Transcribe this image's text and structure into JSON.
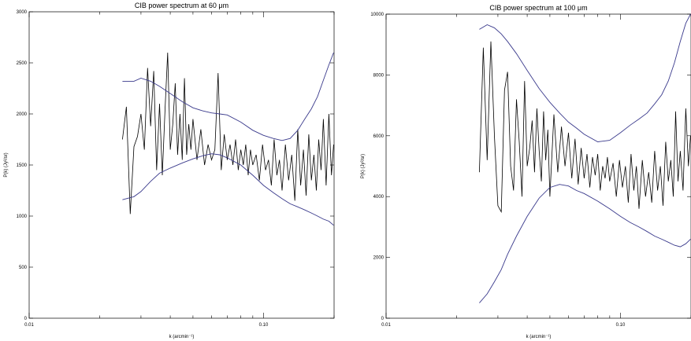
{
  "chart_data": [
    {
      "type": "line",
      "title": "CIB power spectrum at 60 μm",
      "xlabel": "k (arcmin⁻¹)",
      "ylabel": "P(k) (Jy²/sr)",
      "xscale": "log",
      "xlim": [
        0.01,
        0.2
      ],
      "ylim": [
        0,
        3000
      ],
      "xticks": [
        "0.01",
        "0.10"
      ],
      "xtick_values": [
        0.01,
        0.1
      ],
      "yticks": [
        0,
        500,
        1000,
        1500,
        2000,
        2500,
        3000
      ],
      "grid": false,
      "series": [
        {
          "color": "#000000",
          "x": [
            0.025,
            0.026,
            0.027,
            0.028,
            0.029,
            0.03,
            0.031,
            0.032,
            0.033,
            0.034,
            0.035,
            0.036,
            0.037,
            0.038,
            0.039,
            0.04,
            0.041,
            0.042,
            0.043,
            0.044,
            0.045,
            0.046,
            0.047,
            0.048,
            0.049,
            0.05,
            0.052,
            0.054,
            0.056,
            0.058,
            0.06,
            0.062,
            0.064,
            0.066,
            0.068,
            0.07,
            0.072,
            0.074,
            0.076,
            0.078,
            0.08,
            0.082,
            0.084,
            0.086,
            0.088,
            0.09,
            0.093,
            0.096,
            0.099,
            0.102,
            0.105,
            0.108,
            0.111,
            0.114,
            0.117,
            0.12,
            0.124,
            0.128,
            0.132,
            0.136,
            0.14,
            0.144,
            0.148,
            0.152,
            0.156,
            0.16,
            0.164,
            0.168,
            0.172,
            0.176,
            0.18,
            0.185,
            0.19,
            0.195,
            0.199
          ],
          "y": [
            1750,
            2070,
            1020,
            1680,
            1780,
            2000,
            1650,
            2450,
            1880,
            2420,
            1450,
            2100,
            1400,
            2050,
            2600,
            1650,
            1900,
            2300,
            1600,
            2000,
            1550,
            2350,
            1600,
            1900,
            1650,
            1950,
            1550,
            1850,
            1500,
            1700,
            1550,
            1650,
            2400,
            1450,
            1800,
            1550,
            1700,
            1500,
            1750,
            1450,
            1650,
            1500,
            1700,
            1400,
            1650,
            1500,
            1600,
            1350,
            1700,
            1450,
            1550,
            1300,
            1750,
            1400,
            1550,
            1250,
            1700,
            1350,
            1600,
            1150,
            1850,
            1300,
            1650,
            1200,
            1800,
            1350,
            1600,
            1250,
            1750,
            1450,
            1950,
            1300,
            2000,
            1400,
            1700
          ]
        },
        {
          "color": "#3a3a8c",
          "x": [
            0.025,
            0.028,
            0.03,
            0.033,
            0.036,
            0.04,
            0.045,
            0.05,
            0.055,
            0.06,
            0.065,
            0.07,
            0.08,
            0.09,
            0.1,
            0.11,
            0.12,
            0.13,
            0.14,
            0.15,
            0.16,
            0.17,
            0.18,
            0.19,
            0.199
          ],
          "y": [
            2320,
            2320,
            2350,
            2320,
            2270,
            2200,
            2120,
            2060,
            2030,
            2010,
            2000,
            1990,
            1920,
            1840,
            1790,
            1760,
            1740,
            1760,
            1840,
            1950,
            2050,
            2170,
            2330,
            2480,
            2600
          ]
        },
        {
          "color": "#3a3a8c",
          "x": [
            0.025,
            0.028,
            0.03,
            0.033,
            0.036,
            0.04,
            0.045,
            0.05,
            0.055,
            0.06,
            0.065,
            0.07,
            0.08,
            0.09,
            0.1,
            0.11,
            0.12,
            0.13,
            0.14,
            0.15,
            0.16,
            0.17,
            0.18,
            0.19,
            0.199
          ],
          "y": [
            1160,
            1190,
            1240,
            1340,
            1420,
            1470,
            1520,
            1560,
            1590,
            1610,
            1600,
            1570,
            1500,
            1400,
            1300,
            1230,
            1170,
            1120,
            1090,
            1060,
            1030,
            1000,
            970,
            950,
            910
          ]
        }
      ]
    },
    {
      "type": "line",
      "title": "CIB power spectrum at 100 μm",
      "xlabel": "k (arcmin⁻¹)",
      "ylabel": "P(k) (Jy²/sr)",
      "xscale": "log",
      "xlim": [
        0.01,
        0.2
      ],
      "ylim": [
        0,
        10000
      ],
      "xticks": [
        "0.01",
        "0.10"
      ],
      "xtick_values": [
        0.01,
        0.1
      ],
      "yticks": [
        0,
        2000,
        4000,
        6000,
        8000,
        10000
      ],
      "grid": false,
      "series": [
        {
          "color": "#000000",
          "x": [
            0.025,
            0.026,
            0.027,
            0.028,
            0.029,
            0.03,
            0.031,
            0.032,
            0.033,
            0.034,
            0.035,
            0.036,
            0.037,
            0.038,
            0.039,
            0.04,
            0.041,
            0.042,
            0.043,
            0.044,
            0.045,
            0.046,
            0.047,
            0.048,
            0.049,
            0.05,
            0.052,
            0.054,
            0.056,
            0.058,
            0.06,
            0.062,
            0.064,
            0.066,
            0.068,
            0.07,
            0.072,
            0.074,
            0.076,
            0.078,
            0.08,
            0.082,
            0.084,
            0.086,
            0.088,
            0.09,
            0.093,
            0.096,
            0.099,
            0.102,
            0.105,
            0.108,
            0.111,
            0.114,
            0.117,
            0.12,
            0.124,
            0.128,
            0.132,
            0.136,
            0.14,
            0.144,
            0.148,
            0.152,
            0.156,
            0.16,
            0.164,
            0.168,
            0.172,
            0.176,
            0.18,
            0.185,
            0.19,
            0.195,
            0.199
          ],
          "y": [
            4800,
            8900,
            5200,
            9100,
            6000,
            3700,
            3500,
            7500,
            8100,
            5000,
            4200,
            7200,
            5800,
            4000,
            7800,
            5000,
            5600,
            6500,
            4800,
            6900,
            5500,
            4500,
            6800,
            5200,
            6200,
            4000,
            6700,
            4800,
            6300,
            5000,
            6100,
            4600,
            5900,
            4400,
            5600,
            4600,
            5400,
            4300,
            5300,
            4700,
            5400,
            4200,
            5000,
            4600,
            5300,
            4500,
            5100,
            4000,
            5200,
            4300,
            5000,
            3800,
            5400,
            4200,
            5000,
            3600,
            5200,
            4000,
            4800,
            3800,
            5500,
            4200,
            5000,
            3700,
            5800,
            4500,
            5200,
            4000,
            6800,
            4500,
            5500,
            4200,
            6900,
            5000,
            6000
          ]
        },
        {
          "color": "#3a3a8c",
          "x": [
            0.025,
            0.027,
            0.029,
            0.031,
            0.033,
            0.036,
            0.04,
            0.045,
            0.05,
            0.055,
            0.06,
            0.065,
            0.07,
            0.08,
            0.09,
            0.1,
            0.11,
            0.12,
            0.13,
            0.14,
            0.15,
            0.16,
            0.17,
            0.18,
            0.19,
            0.199
          ],
          "y": [
            9500,
            9650,
            9550,
            9350,
            9100,
            8700,
            8150,
            7550,
            7100,
            6750,
            6450,
            6250,
            6050,
            5800,
            5850,
            6100,
            6350,
            6550,
            6750,
            7050,
            7350,
            7800,
            8400,
            9100,
            9700,
            10000
          ]
        },
        {
          "color": "#3a3a8c",
          "x": [
            0.025,
            0.027,
            0.029,
            0.031,
            0.033,
            0.036,
            0.04,
            0.045,
            0.05,
            0.055,
            0.06,
            0.065,
            0.07,
            0.08,
            0.09,
            0.1,
            0.11,
            0.12,
            0.13,
            0.14,
            0.15,
            0.16,
            0.17,
            0.18,
            0.19,
            0.199
          ],
          "y": [
            500,
            800,
            1200,
            1600,
            2100,
            2700,
            3350,
            3950,
            4300,
            4400,
            4350,
            4200,
            4100,
            3850,
            3600,
            3350,
            3150,
            3000,
            2850,
            2700,
            2600,
            2500,
            2400,
            2350,
            2450,
            2600
          ]
        }
      ]
    }
  ]
}
